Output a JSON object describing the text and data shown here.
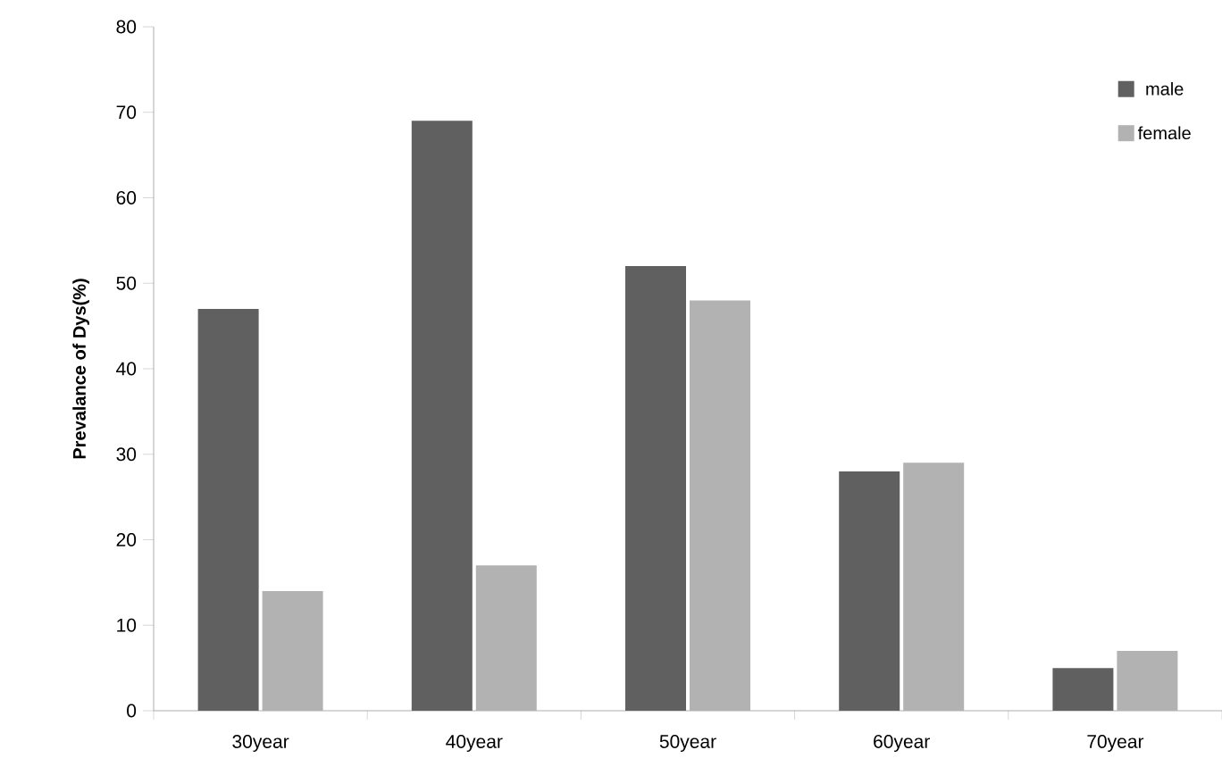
{
  "chart_data": {
    "type": "bar",
    "ylabel": "Prevalance of Dys(%)",
    "categories": [
      "30year",
      "40year",
      "50year",
      "60year",
      "70year"
    ],
    "series": [
      {
        "name": "male",
        "color": "#606060",
        "values": [
          47,
          69,
          52,
          28,
          5
        ]
      },
      {
        "name": "female",
        "color": "#b2b2b2",
        "values": [
          14,
          17,
          48,
          29,
          7
        ]
      }
    ],
    "ylim": [
      0,
      80
    ],
    "yticks": [
      0,
      10,
      20,
      30,
      40,
      50,
      60,
      70,
      80
    ],
    "legend": "top right",
    "grid": false
  }
}
